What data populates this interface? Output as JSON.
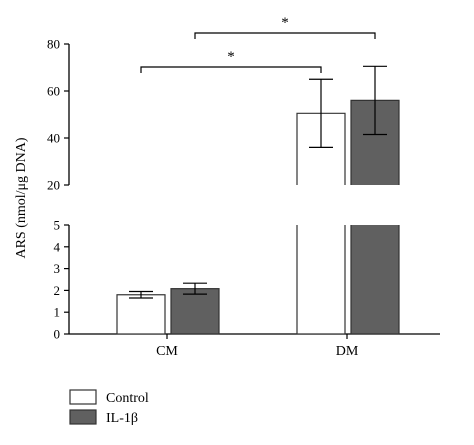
{
  "chart_data": {
    "type": "bar",
    "ylabel": "ARS (nmol/μg DNA)",
    "categories": [
      "CM",
      "DM"
    ],
    "series": [
      {
        "name": "Control",
        "values": [
          1.8,
          50.5
        ],
        "errors": [
          0.15,
          14.5
        ],
        "color": "#ffffff"
      },
      {
        "name": "IL-1β",
        "values": [
          2.08,
          56.0
        ],
        "errors": [
          0.25,
          14.5
        ],
        "color": "#606060"
      }
    ],
    "axis_break": {
      "lower_ylim": [
        0,
        5
      ],
      "upper_ylim": [
        20,
        80
      ]
    },
    "lower_ticks": [
      "0",
      "1",
      "2",
      "3",
      "4",
      "5"
    ],
    "upper_ticks": [
      "20",
      "40",
      "60",
      "80"
    ],
    "significance": [
      {
        "label": "*",
        "from": "CM Control",
        "to": "DM Control"
      },
      {
        "label": "*",
        "from": "CM IL-1β",
        "to": "DM IL-1β"
      }
    ],
    "legend_position": "bottom-left"
  }
}
